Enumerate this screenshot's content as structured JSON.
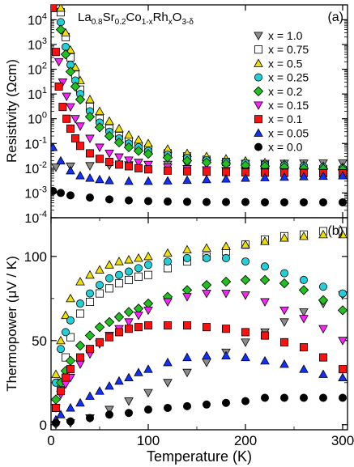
{
  "chart_data": [
    {
      "panel": "(a)",
      "type": "scatter",
      "title": "La0.8Sr0.2Co1-xRhxO3-δ",
      "formula": {
        "base1": "La",
        "sub1": "0.8",
        "base2": "Sr",
        "sub2": "0.2",
        "base3": "Co",
        "sub3": "1-x",
        "base4": "Rh",
        "sub4": "x",
        "base5": "O",
        "sub5": "3-δ"
      },
      "xlabel": "",
      "ylabel": "Resistivity (Ωcm)",
      "yscale": "log",
      "xlim": [
        0,
        305
      ],
      "ylim": [
        0.0001,
        40000
      ],
      "xticks": [
        0,
        100,
        200,
        300
      ],
      "yticks": [
        {
          "value": 0.0001,
          "base": "10",
          "exp": "-4"
        },
        {
          "value": 0.001,
          "base": "10",
          "exp": "-3"
        },
        {
          "value": 0.01,
          "base": "10",
          "exp": "-2"
        },
        {
          "value": 0.1,
          "base": "10",
          "exp": "-1"
        },
        {
          "value": 1,
          "base": "10",
          "exp": "0"
        },
        {
          "value": 10,
          "base": "10",
          "exp": "1"
        },
        {
          "value": 100,
          "base": "10",
          "exp": "2"
        },
        {
          "value": 1000,
          "base": "10",
          "exp": "3"
        },
        {
          "value": 10000,
          "base": "10",
          "exp": "4"
        }
      ],
      "legend_position": "top-right",
      "series": [
        {
          "name": "x = 1.0",
          "marker": "triangle-down",
          "color": "#8c8c8c",
          "x": [
            5,
            20,
            40,
            60,
            80,
            100,
            120,
            140,
            160,
            180,
            200,
            220,
            240,
            260,
            280,
            300
          ],
          "y": [
            0.011,
            0.012,
            0.0125,
            0.013,
            0.0135,
            0.014,
            0.0142,
            0.0145,
            0.0148,
            0.015,
            0.0152,
            0.0154,
            0.0156,
            0.0158,
            0.016,
            0.016
          ]
        },
        {
          "name": "x = 0.75",
          "marker": "square-open",
          "color": "#ffffff",
          "x": [
            10,
            15,
            20,
            25,
            30,
            40,
            50,
            60,
            70,
            80,
            90,
            100,
            120,
            140,
            160,
            180,
            200,
            220,
            240,
            260,
            280,
            300
          ],
          "y": [
            20000,
            2000,
            300,
            60,
            15,
            3,
            1,
            0.4,
            0.2,
            0.12,
            0.08,
            0.06,
            0.04,
            0.03,
            0.022,
            0.018,
            0.015,
            0.013,
            0.011,
            0.01,
            0.009,
            0.0085
          ]
        },
        {
          "name": "x = 0.5",
          "marker": "triangle-up",
          "color": "#f0e000",
          "x": [
            10,
            15,
            20,
            25,
            30,
            40,
            50,
            60,
            70,
            80,
            90,
            100,
            120,
            140,
            160,
            180,
            200,
            220,
            240,
            260,
            280,
            300
          ],
          "y": [
            30000,
            3000,
            600,
            120,
            35,
            6,
            2,
            0.8,
            0.4,
            0.22,
            0.14,
            0.1,
            0.06,
            0.04,
            0.03,
            0.024,
            0.02,
            0.017,
            0.015,
            0.013,
            0.012,
            0.011
          ]
        },
        {
          "name": "x = 0.25",
          "marker": "circle",
          "color": "#20d0d8",
          "x": [
            10,
            15,
            20,
            25,
            30,
            40,
            50,
            60,
            70,
            80,
            90,
            100,
            120,
            140,
            160,
            180,
            200,
            220,
            240,
            260,
            280,
            300
          ],
          "y": [
            8000,
            800,
            150,
            35,
            10,
            2,
            0.7,
            0.3,
            0.16,
            0.1,
            0.07,
            0.05,
            0.035,
            0.026,
            0.021,
            0.018,
            0.016,
            0.014,
            0.013,
            0.012,
            0.011,
            0.01
          ]
        },
        {
          "name": "x = 0.2",
          "marker": "diamond",
          "color": "#20c020",
          "x": [
            10,
            15,
            20,
            25,
            30,
            40,
            50,
            60,
            70,
            80,
            90,
            100,
            120,
            140,
            160,
            180,
            200,
            220,
            240,
            260,
            280,
            300
          ],
          "y": [
            4000,
            400,
            80,
            20,
            6,
            1.2,
            0.45,
            0.2,
            0.11,
            0.07,
            0.05,
            0.038,
            0.027,
            0.02,
            0.017,
            0.015,
            0.013,
            0.012,
            0.011,
            0.01,
            0.0095,
            0.009
          ]
        },
        {
          "name": "x = 0.15",
          "marker": "triangle-down",
          "color": "#ff20ff",
          "x": [
            8,
            12,
            16,
            20,
            25,
            30,
            40,
            50,
            60,
            70,
            80,
            90,
            100,
            120,
            140,
            160,
            180,
            200,
            220,
            240,
            260,
            280,
            300
          ],
          "y": [
            200,
            30,
            8,
            3,
            1,
            0.5,
            0.16,
            0.07,
            0.04,
            0.028,
            0.021,
            0.017,
            0.014,
            0.011,
            0.0095,
            0.0085,
            0.008,
            0.0075,
            0.0072,
            0.007,
            0.0068,
            0.0066,
            0.0065
          ]
        },
        {
          "name": "x = 0.1",
          "marker": "square",
          "color": "#ff1010",
          "x": [
            2,
            5,
            8,
            12,
            16,
            20,
            25,
            30,
            40,
            50,
            60,
            70,
            80,
            90,
            100,
            120,
            140,
            160,
            180,
            200,
            220,
            240,
            260,
            280,
            300
          ],
          "y": [
            30000,
            500,
            20,
            3,
            1,
            0.4,
            0.16,
            0.08,
            0.04,
            0.024,
            0.018,
            0.014,
            0.012,
            0.01,
            0.009,
            0.008,
            0.0075,
            0.0072,
            0.007,
            0.0068,
            0.0066,
            0.0065,
            0.0064,
            0.0063,
            0.0062
          ]
        },
        {
          "name": "x = 0.05",
          "marker": "triangle-up",
          "color": "#1030ff",
          "x": [
            2,
            10,
            20,
            30,
            40,
            50,
            60,
            80,
            100,
            120,
            140,
            160,
            180,
            200,
            220,
            240,
            260,
            280,
            300
          ],
          "y": [
            0.07,
            0.02,
            0.008,
            0.005,
            0.004,
            0.0035,
            0.0032,
            0.003,
            0.003,
            0.0031,
            0.0033,
            0.0035,
            0.0037,
            0.004,
            0.0042,
            0.0044,
            0.0046,
            0.0048,
            0.005
          ]
        },
        {
          "name": "x = 0.0",
          "marker": "circle",
          "color": "#000000",
          "x": [
            2,
            10,
            20,
            40,
            60,
            80,
            100,
            120,
            140,
            160,
            180,
            200,
            220,
            240,
            260,
            280,
            300
          ],
          "y": [
            0.0012,
            0.001,
            0.0008,
            0.00065,
            0.00055,
            0.0005,
            0.00047,
            0.00045,
            0.00044,
            0.00043,
            0.00043,
            0.00043,
            0.00042,
            0.00042,
            0.00042,
            0.00042,
            0.00042
          ]
        }
      ]
    },
    {
      "panel": "(b)",
      "type": "scatter",
      "xlabel": "Temperature (K)",
      "ylabel": "Thermopower (μV / K)",
      "xlim": [
        0,
        305
      ],
      "ylim": [
        -3,
        123
      ],
      "xticks": [
        0,
        100,
        200,
        300
      ],
      "yticks": [
        0,
        50,
        100
      ],
      "series": [
        {
          "name": "x = 1.0",
          "x": [
            5,
            20,
            40,
            60,
            80,
            100,
            120,
            140,
            160,
            180,
            200,
            220,
            240,
            260,
            280,
            300
          ],
          "y": [
            0,
            1,
            4,
            9,
            14,
            19,
            25,
            31,
            37,
            43,
            49,
            55,
            61,
            67,
            72,
            77
          ]
        },
        {
          "name": "x = 0.75",
          "x": [
            5,
            10,
            15,
            20,
            30,
            40,
            50,
            60,
            70,
            80,
            90,
            100,
            120,
            140,
            160,
            180,
            200,
            220,
            240,
            260,
            280,
            300
          ],
          "y": [
            10,
            25,
            40,
            52,
            66,
            73,
            78,
            81,
            84,
            86,
            88,
            89,
            93,
            97,
            100,
            103,
            107,
            110,
            112,
            113,
            115,
            115
          ]
        },
        {
          "name": "x = 0.5",
          "x": [
            5,
            10,
            15,
            20,
            30,
            40,
            50,
            60,
            70,
            80,
            90,
            100,
            120,
            140,
            160,
            180,
            200,
            220,
            240,
            260,
            280,
            300
          ],
          "y": [
            30,
            50,
            65,
            75,
            85,
            89,
            92,
            95,
            97,
            98,
            99,
            100,
            102,
            104,
            105,
            106,
            107,
            109,
            111,
            112,
            113,
            113
          ]
        },
        {
          "name": "x = 0.25",
          "x": [
            5,
            10,
            15,
            20,
            30,
            40,
            50,
            60,
            70,
            80,
            90,
            100,
            120,
            140,
            160,
            180,
            200,
            220,
            240,
            260,
            280,
            300
          ],
          "y": [
            25,
            45,
            55,
            62,
            72,
            78,
            83,
            87,
            89,
            91,
            93,
            95,
            97,
            99,
            99,
            99,
            97,
            94,
            90,
            86,
            82,
            78
          ]
        },
        {
          "name": "x = 0.2",
          "x": [
            5,
            10,
            15,
            20,
            30,
            40,
            50,
            60,
            70,
            80,
            90,
            100,
            120,
            140,
            160,
            180,
            200,
            220,
            240,
            260,
            280,
            300
          ],
          "y": [
            15,
            25,
            32,
            38,
            47,
            53,
            58,
            61,
            64,
            67,
            69,
            72,
            76,
            80,
            83,
            85,
            86,
            86,
            84,
            80,
            74,
            68
          ]
        },
        {
          "name": "x = 0.15",
          "x": [
            5,
            10,
            15,
            20,
            30,
            40,
            50,
            60,
            70,
            80,
            90,
            100,
            120,
            140,
            160,
            180,
            200,
            220,
            240,
            260,
            280,
            300
          ],
          "y": [
            10,
            18,
            24,
            28,
            36,
            42,
            48,
            53,
            57,
            61,
            65,
            68,
            73,
            76,
            78,
            78,
            77,
            73,
            68,
            63,
            57,
            50
          ]
        },
        {
          "name": "x = 0.1",
          "x": [
            5,
            10,
            15,
            20,
            30,
            40,
            50,
            60,
            70,
            80,
            90,
            100,
            120,
            140,
            160,
            180,
            200,
            220,
            240,
            260,
            280,
            300
          ],
          "y": [
            10,
            20,
            28,
            33,
            40,
            45,
            49,
            52,
            55,
            57,
            58,
            59,
            59,
            59,
            58,
            57,
            55,
            53,
            49,
            46,
            40,
            33
          ]
        },
        {
          "name": "x = 0.05",
          "x": [
            5,
            10,
            20,
            30,
            40,
            50,
            60,
            70,
            80,
            90,
            100,
            120,
            140,
            160,
            180,
            200,
            220,
            240,
            260,
            280,
            300
          ],
          "y": [
            3,
            6,
            10,
            13,
            17,
            20,
            23,
            26,
            28,
            31,
            33,
            37,
            40,
            41,
            41,
            40,
            38,
            36,
            33,
            30,
            28
          ]
        },
        {
          "name": "x = 0.0",
          "x": [
            5,
            20,
            40,
            60,
            80,
            100,
            120,
            140,
            160,
            180,
            200,
            220,
            240,
            260,
            280,
            300
          ],
          "y": [
            1,
            2,
            4,
            6,
            7,
            9,
            10,
            11,
            12,
            13,
            14,
            16,
            16,
            16,
            16,
            16
          ]
        }
      ]
    }
  ]
}
